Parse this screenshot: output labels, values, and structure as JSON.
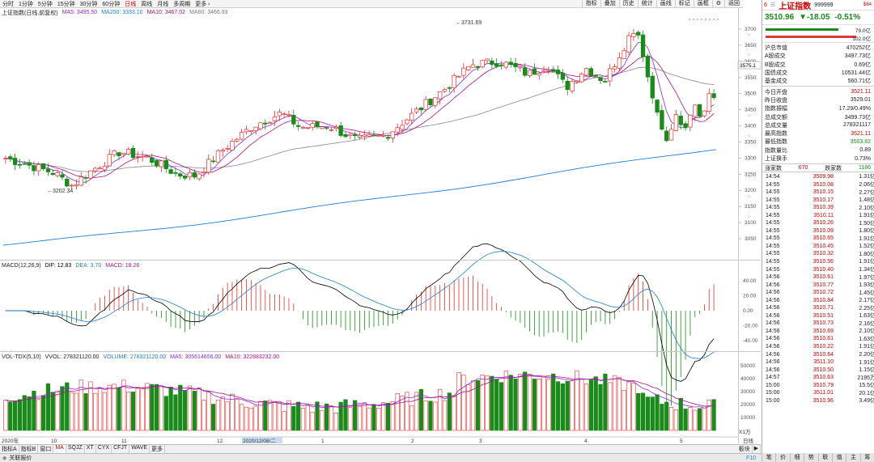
{
  "toolbar": {
    "periods": [
      "分时",
      "1分钟",
      "5分钟",
      "15分钟",
      "30分钟",
      "60分钟",
      "日线",
      "周线",
      "月线",
      "多周期",
      "更多 ›"
    ],
    "selected": "日线",
    "tools": [
      "指标",
      "叠加",
      "历史",
      "统计",
      "画线",
      "标记",
      "画框"
    ],
    "back": "返回"
  },
  "main": {
    "title": "上证指数(日线,前复权)",
    "ma": [
      {
        "label": "MA5: 3495.50",
        "color": "#8a2be2"
      },
      {
        "label": "MA250: 3333.10",
        "color": "#1e7fd6"
      },
      {
        "label": "MA10: 3467.02",
        "color": "#b0108c"
      },
      {
        "label": "MA60: 3466.93",
        "color": "#777777"
      }
    ],
    "yticks": [
      "3700",
      "3650",
      "3600",
      "3550",
      "3500",
      "3450",
      "3400",
      "3350",
      "3300",
      "3250",
      "3200",
      "3150",
      "3100",
      "3050"
    ],
    "high_label": "3731.69",
    "low_label": "3202.34",
    "price_tag": "3575.1"
  },
  "macd": {
    "title": "MACD(12,26,9)",
    "dif": "DIF: 12.83",
    "dea": "DEA: 3.70",
    "macd": "MACD: 18.26",
    "yticks": [
      "40.00",
      "20.00",
      "0.00",
      "-20.00",
      "-40.00"
    ]
  },
  "vol": {
    "title": "VOL-TDX(5,10)",
    "vvol": "VVOL: 278321120.00",
    "volume": "VOLUME: 278321120.00",
    "ma5": "MA5: 305614656.00",
    "ma10": "MA10: 322883232.00",
    "yticks": [
      "50000",
      "40000",
      "30000",
      "20000",
      "10000"
    ],
    "unit": "X1万"
  },
  "xaxis": {
    "labels": [
      "2020年",
      "10",
      "11",
      "12",
      "2020/12/08/二",
      "1",
      "2",
      "3",
      "4",
      "5"
    ],
    "right": "日线"
  },
  "bottom_tabs": [
    "指标A",
    "指标B",
    "窗口",
    "MA",
    "SQJZ",
    "XT",
    "CYX",
    "CFJT",
    "WAVE",
    "更多"
  ],
  "bottom_selected": "MA",
  "bottom_right": [
    "板块",
    "▶"
  ],
  "status": {
    "text": "关联报价",
    "right": "F10"
  },
  "quote": {
    "code_num": "6",
    "name": "上证指数",
    "code": "999999",
    "flag": "$64",
    "price": "3510.96",
    "change": "▼-18.05",
    "pct": "-0.51%",
    "bar1": "79.0亿",
    "bar2": "102.0亿",
    "rows": [
      [
        "沪总市值",
        "470252亿"
      ],
      [
        "A股成交",
        "3497.73亿"
      ],
      [
        "B股成交",
        "0.69亿"
      ],
      [
        "国债成交",
        "10531.44亿"
      ],
      [
        "基金成交",
        "560.71亿"
      ]
    ],
    "rows2": [
      [
        "今日开盘",
        "3521.11"
      ],
      [
        "昨日收盘",
        "3529.01"
      ],
      [
        "指数振幅",
        "17.29/0.49%"
      ],
      [
        "总成交额",
        "3499.73亿"
      ],
      [
        "总成交量",
        "278321117"
      ],
      [
        "最高指数",
        "3521.11"
      ],
      [
        "最低指数",
        "3503.82"
      ],
      [
        "指数量比",
        "0.89"
      ],
      [
        "上证换手",
        "0.73%"
      ]
    ],
    "updown": {
      "up_label": "涨家数",
      "up": "670",
      "down_label": "跌家数",
      "down": "1186"
    }
  },
  "ticks": [
    [
      "14:54",
      "3509.98",
      "1.31亿"
    ],
    [
      "14:55",
      "3510.08",
      "2.06亿"
    ],
    [
      "14:55",
      "3510.15",
      "2.27亿"
    ],
    [
      "14:55",
      "3510.17",
      "1.48亿"
    ],
    [
      "14:55",
      "3510.39",
      "2.10亿"
    ],
    [
      "14:55",
      "3510.11",
      "1.91亿"
    ],
    [
      "14:55",
      "3510.26",
      "1.50亿"
    ],
    [
      "14:55",
      "3510.09",
      "1.80亿"
    ],
    [
      "14:55",
      "3510.65",
      "1.91亿"
    ],
    [
      "14:55",
      "3510.45",
      "1.52亿"
    ],
    [
      "14:55",
      "3510.32",
      "1.80亿"
    ],
    [
      "14:55",
      "3510.56",
      "1.91亿"
    ],
    [
      "14:55",
      "3510.40",
      "1.34亿"
    ],
    [
      "14:56",
      "3510.61",
      "1.97亿"
    ],
    [
      "14:56",
      "3510.77",
      "1.93亿"
    ],
    [
      "14:56",
      "3510.72",
      "1.45亿"
    ],
    [
      "14:56",
      "3510.84",
      "2.17亿"
    ],
    [
      "14:56",
      "3510.71",
      "2.25亿"
    ],
    [
      "14:56",
      "3510.51",
      "1.63亿"
    ],
    [
      "14:56",
      "3510.73",
      "2.16亿"
    ],
    [
      "14:56",
      "3510.69",
      "2.10亿"
    ],
    [
      "14:56",
      "3510.61",
      "1.63亿"
    ],
    [
      "14:56",
      "3510.22",
      "1.91亿"
    ],
    [
      "14:56",
      "3510.64",
      "2.20亿"
    ],
    [
      "14:56",
      "3511.10",
      "1.91亿"
    ],
    [
      "14:56",
      "3510.50",
      "1.15亿"
    ],
    [
      "14:57",
      "3510.63",
      "2195万"
    ],
    [
      "15:00",
      "3510.79",
      "15.5亿"
    ],
    [
      "15:00",
      "3511.01",
      "20.1亿"
    ],
    [
      "15:00",
      "3510.96",
      "3.49亿"
    ]
  ],
  "right_tabs": [
    "笔",
    "价",
    "细",
    "势",
    "联",
    "值",
    "主",
    "筹"
  ]
}
